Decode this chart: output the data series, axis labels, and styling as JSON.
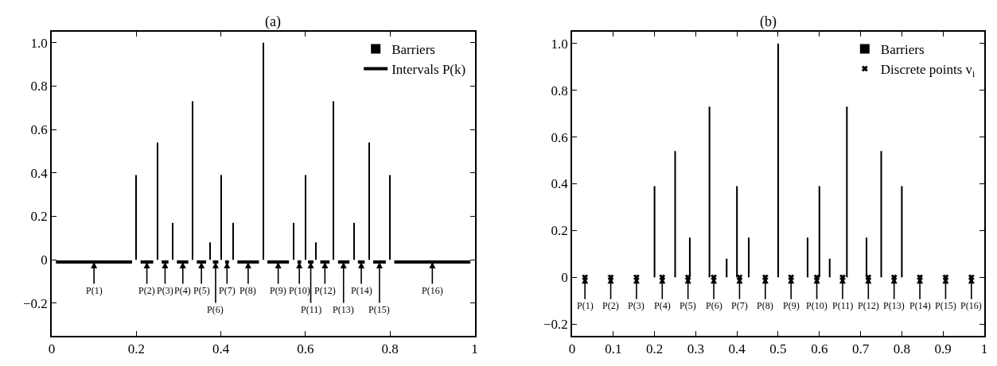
{
  "chart_data": [
    {
      "type": "bar",
      "title": "(a)",
      "xlim": [
        0,
        1
      ],
      "ylim": [
        -0.35,
        1.05
      ],
      "xticks": [
        0,
        0.2,
        0.4,
        0.6,
        0.8,
        1
      ],
      "yticks": [
        {
          "value": -0.2,
          "label": "−0.2"
        },
        {
          "value": 0,
          "label": "0"
        },
        {
          "value": 0.2,
          "label": "0.2"
        },
        {
          "value": 0.4,
          "label": "0.4"
        },
        {
          "value": 0.6,
          "label": "0.6"
        },
        {
          "value": 0.8,
          "label": "0.8"
        },
        {
          "value": 1,
          "label": "1.0"
        }
      ],
      "legend": "top right",
      "series": [
        {
          "name": "Barriers",
          "color": "#000000",
          "x": [
            0.2,
            0.25,
            0.2857,
            0.3333,
            0.375,
            0.4,
            0.4286,
            0.5,
            0.5714,
            0.6,
            0.625,
            0.6667,
            0.7143,
            0.75,
            0.8
          ],
          "values": [
            0.39,
            0.54,
            0.17,
            0.73,
            0.08,
            0.39,
            0.17,
            1.0,
            0.17,
            0.39,
            0.08,
            0.73,
            0.17,
            0.54,
            0.39
          ]
        },
        {
          "name": "Intervals P(k)",
          "type": "line",
          "color": "#000000",
          "x": [
            0.01,
            0.19,
            0.2,
            0.21,
            0.24,
            0.25,
            0.26,
            0.276,
            0.2857,
            0.296,
            0.323,
            0.3333,
            0.343,
            0.365,
            0.375,
            0.381,
            0.394,
            0.4,
            0.41,
            0.419,
            0.4286,
            0.439,
            0.49,
            0.5,
            0.51,
            0.561,
            0.5714,
            0.581,
            0.59,
            0.6,
            0.606,
            0.619,
            0.625,
            0.635,
            0.657,
            0.6667,
            0.677,
            0.704,
            0.7143,
            0.724,
            0.74,
            0.75,
            0.76,
            0.79,
            0.8,
            0.81,
            0.99
          ],
          "values": [
            -0.01,
            -0.01,
            null,
            -0.01,
            -0.01,
            null,
            -0.01,
            -0.01,
            null,
            -0.01,
            -0.01,
            null,
            -0.01,
            -0.01,
            null,
            -0.01,
            -0.01,
            null,
            -0.01,
            -0.01,
            null,
            -0.01,
            -0.01,
            null,
            -0.01,
            -0.01,
            null,
            -0.01,
            -0.01,
            null,
            -0.01,
            -0.01,
            null,
            -0.01,
            -0.01,
            null,
            -0.01,
            -0.01,
            null,
            -0.01,
            -0.01,
            null,
            -0.01,
            -0.01,
            null,
            -0.01,
            -0.01
          ]
        }
      ],
      "annotations": [
        {
          "text": "P(1)",
          "x": 0.1,
          "y": -0.01
        },
        {
          "text": "P(2)",
          "x": 0.225,
          "y": -0.01
        },
        {
          "text": "P(3)",
          "x": 0.268,
          "y": -0.01
        },
        {
          "text": "P(4)",
          "x": 0.31,
          "y": -0.01
        },
        {
          "text": "P(5)",
          "x": 0.354,
          "y": -0.01
        },
        {
          "text": "P(6)",
          "x": 0.3875,
          "y": -0.01
        },
        {
          "text": "P(7)",
          "x": 0.4145,
          "y": -0.01
        },
        {
          "text": "P(8)",
          "x": 0.4645,
          "y": -0.01
        },
        {
          "text": "P(9)",
          "x": 0.5355,
          "y": -0.01
        },
        {
          "text": "P(10)",
          "x": 0.5855,
          "y": -0.01
        },
        {
          "text": "P(11)",
          "x": 0.6125,
          "y": -0.01
        },
        {
          "text": "P(12)",
          "x": 0.646,
          "y": -0.01
        },
        {
          "text": "P(13)",
          "x": 0.69,
          "y": -0.01
        },
        {
          "text": "P(14)",
          "x": 0.732,
          "y": -0.01
        },
        {
          "text": "P(15)",
          "x": 0.775,
          "y": -0.01
        },
        {
          "text": "P(16)",
          "x": 0.9,
          "y": -0.01
        }
      ]
    },
    {
      "type": "bar",
      "title": "(b)",
      "xlim": [
        0,
        1
      ],
      "ylim": [
        -0.25,
        1.05
      ],
      "xticks": [
        0,
        0.1,
        0.2,
        0.3,
        0.4,
        0.5,
        0.6,
        0.7,
        0.8,
        0.9,
        1
      ],
      "yticks": [
        {
          "value": -0.2,
          "label": "−0.2"
        },
        {
          "value": 0,
          "label": "0"
        },
        {
          "value": 0.2,
          "label": "0.2"
        },
        {
          "value": 0.4,
          "label": "0.4"
        },
        {
          "value": 0.6,
          "label": "0.6"
        },
        {
          "value": 0.8,
          "label": "0.8"
        },
        {
          "value": 1,
          "label": "1.0"
        }
      ],
      "legend": "top right",
      "series": [
        {
          "name": "Barriers",
          "color": "#000000",
          "x": [
            0.2,
            0.25,
            0.2857,
            0.3333,
            0.375,
            0.4,
            0.4286,
            0.5,
            0.5714,
            0.6,
            0.625,
            0.6667,
            0.7143,
            0.75,
            0.8
          ],
          "values": [
            0.39,
            0.54,
            0.17,
            0.73,
            0.08,
            0.39,
            0.17,
            1.0,
            0.17,
            0.39,
            0.08,
            0.73,
            0.17,
            0.54,
            0.39
          ]
        },
        {
          "name": "Discrete points v$_{i}$",
          "type": "scatter",
          "marker": "cross",
          "color": "#000000",
          "x": [
            0.03125,
            0.09375,
            0.15625,
            0.21875,
            0.28125,
            0.34375,
            0.40625,
            0.46875,
            0.53125,
            0.59375,
            0.65625,
            0.71875,
            0.78125,
            0.84375,
            0.90625,
            0.96875
          ],
          "values": [
            0,
            0,
            0,
            0,
            0,
            0,
            0,
            0,
            0,
            0,
            0,
            0,
            0,
            0,
            0,
            0
          ]
        }
      ],
      "annotations": [
        {
          "text": "P(1)",
          "x": 0.03125,
          "y": 0
        },
        {
          "text": "P(2)",
          "x": 0.09375,
          "y": 0
        },
        {
          "text": "P(3)",
          "x": 0.15625,
          "y": 0
        },
        {
          "text": "P(4)",
          "x": 0.21875,
          "y": 0
        },
        {
          "text": "P(5)",
          "x": 0.28125,
          "y": 0
        },
        {
          "text": "P(6)",
          "x": 0.34375,
          "y": 0
        },
        {
          "text": "P(7)",
          "x": 0.40625,
          "y": 0
        },
        {
          "text": "P(8)",
          "x": 0.46875,
          "y": 0
        },
        {
          "text": "P(9)",
          "x": 0.53125,
          "y": 0
        },
        {
          "text": "P(10)",
          "x": 0.59375,
          "y": 0
        },
        {
          "text": "P(11)",
          "x": 0.65625,
          "y": 0
        },
        {
          "text": "P(12)",
          "x": 0.71875,
          "y": 0
        },
        {
          "text": "P(13)",
          "x": 0.78125,
          "y": 0
        },
        {
          "text": "P(14)",
          "x": 0.84375,
          "y": 0
        },
        {
          "text": "P(15)",
          "x": 0.90625,
          "y": 0
        },
        {
          "text": "P(16)",
          "x": 0.96875,
          "y": 0
        }
      ]
    }
  ]
}
